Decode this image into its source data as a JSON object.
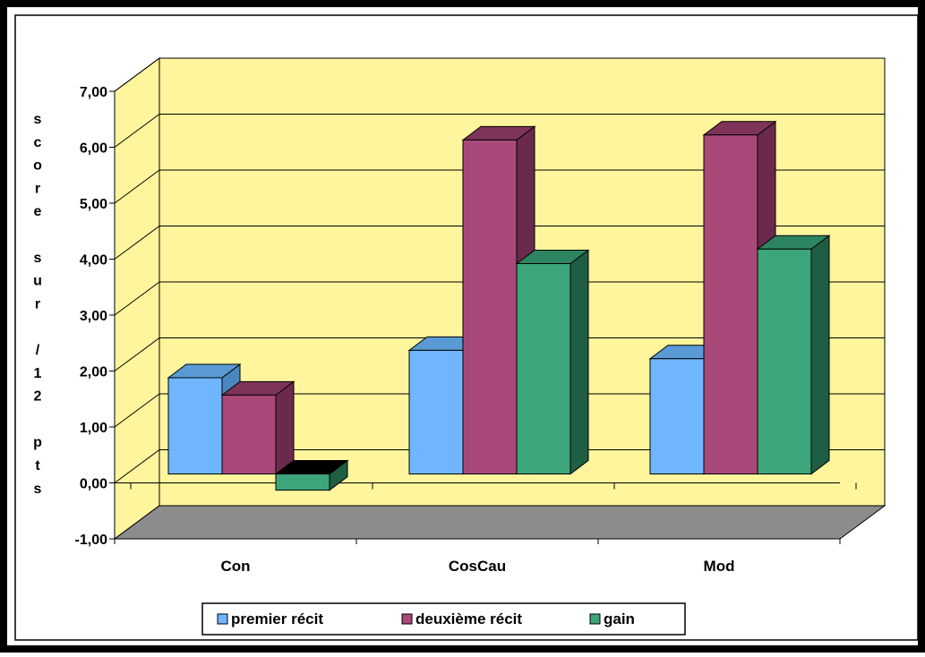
{
  "chart_data": {
    "type": "bar",
    "title": "",
    "xlabel": "",
    "ylabel": "score sur /12 pts",
    "ylabel_chars": [
      "s",
      "c",
      "o",
      "r",
      "e",
      "",
      "s",
      "u",
      "r",
      "",
      "/",
      "1",
      "2",
      "",
      "p",
      "t",
      "s"
    ],
    "categories": [
      "Con",
      "CosCau",
      "Mod"
    ],
    "series": [
      {
        "name": "premier récit",
        "values": [
          1.72,
          2.21,
          2.06
        ]
      },
      {
        "name": "deuxième récit",
        "values": [
          1.41,
          5.97,
          6.06
        ]
      },
      {
        "name": "gain",
        "values": [
          -0.29,
          3.76,
          4.02
        ]
      }
    ],
    "ylim": [
      -1,
      7
    ],
    "yticks": [
      "-1,00",
      "0,00",
      "1,00",
      "2,00",
      "3,00",
      "4,00",
      "5,00",
      "6,00",
      "7,00"
    ],
    "grid": true,
    "legend_position": "bottom",
    "style": "3d-clustered-column"
  },
  "colors": {
    "background_wall": "#fff59d",
    "floor": "#8c8c8c",
    "series": [
      "#6fb6ff",
      "#a8497a",
      "#3ca57a"
    ],
    "series_side": [
      "#4a86c0",
      "#6b2a4d",
      "#1f5e44"
    ],
    "series_top": [
      "#5a9bd5",
      "#7e3459",
      "#2c8560"
    ]
  }
}
